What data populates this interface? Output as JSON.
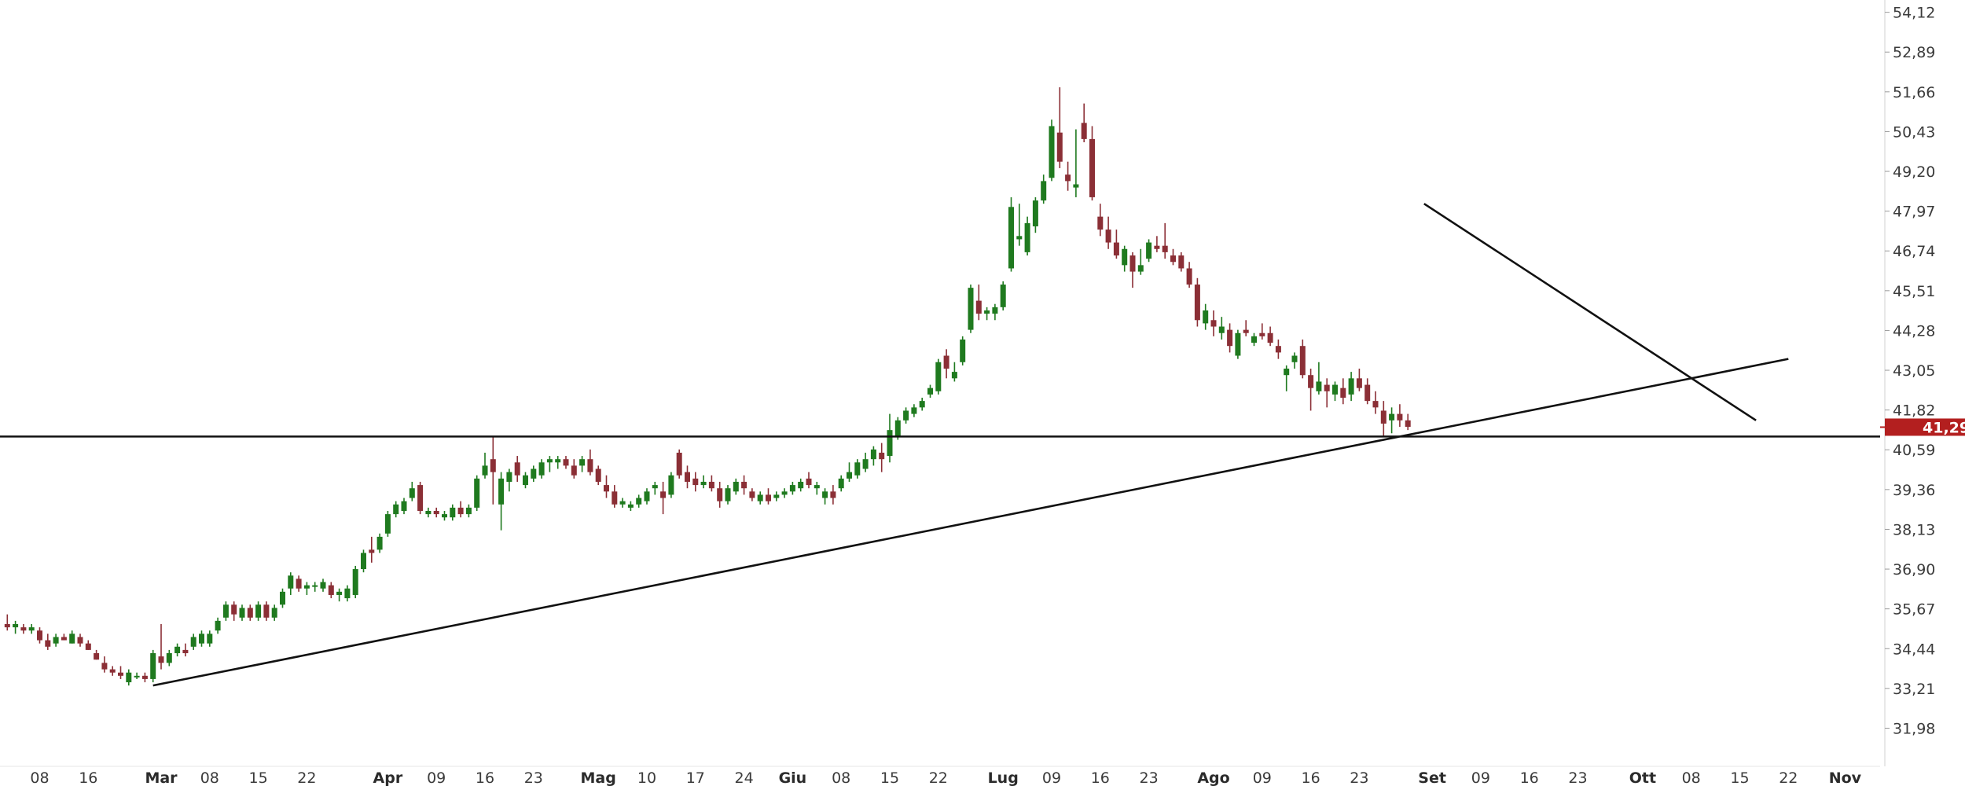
{
  "chart_data": {
    "type": "candlestick",
    "colors": {
      "up": "#1f7a1f",
      "down": "#8b2f36",
      "price_tag": "#b31f1f",
      "lines": "#111111"
    },
    "y_axis": {
      "position": "right",
      "range": [
        30.8,
        54.5
      ],
      "ticks": [
        "54,12",
        "52,89",
        "51,66",
        "50,43",
        "49,20",
        "47,97",
        "46,74",
        "45,51",
        "44,28",
        "43,05",
        "41,82",
        "40,59",
        "39,36",
        "38,13",
        "36,90",
        "35,67",
        "34,44",
        "33,21",
        "31,98"
      ],
      "tick_values": [
        54.12,
        52.89,
        51.66,
        50.43,
        49.2,
        47.97,
        46.74,
        45.51,
        44.28,
        43.05,
        41.82,
        40.59,
        39.36,
        38.13,
        36.9,
        35.67,
        34.44,
        33.21,
        31.98
      ]
    },
    "x_axis": {
      "labels": [
        {
          "text": "08",
          "pos": 5,
          "month": false
        },
        {
          "text": "16",
          "pos": 11,
          "month": false
        },
        {
          "text": "Mar",
          "pos": 20,
          "month": true
        },
        {
          "text": "08",
          "pos": 26,
          "month": false
        },
        {
          "text": "15",
          "pos": 32,
          "month": false
        },
        {
          "text": "22",
          "pos": 38,
          "month": false
        },
        {
          "text": "Apr",
          "pos": 48,
          "month": true
        },
        {
          "text": "09",
          "pos": 54,
          "month": false
        },
        {
          "text": "16",
          "pos": 60,
          "month": false
        },
        {
          "text": "23",
          "pos": 66,
          "month": false
        },
        {
          "text": "Mag",
          "pos": 74,
          "month": true
        },
        {
          "text": "10",
          "pos": 80,
          "month": false
        },
        {
          "text": "17",
          "pos": 86,
          "month": false
        },
        {
          "text": "24",
          "pos": 92,
          "month": false
        },
        {
          "text": "Giu",
          "pos": 98,
          "month": true
        },
        {
          "text": "08",
          "pos": 104,
          "month": false
        },
        {
          "text": "15",
          "pos": 110,
          "month": false
        },
        {
          "text": "22",
          "pos": 116,
          "month": false
        },
        {
          "text": "Lug",
          "pos": 124,
          "month": true
        },
        {
          "text": "09",
          "pos": 130,
          "month": false
        },
        {
          "text": "16",
          "pos": 136,
          "month": false
        },
        {
          "text": "23",
          "pos": 142,
          "month": false
        },
        {
          "text": "Ago",
          "pos": 150,
          "month": true
        },
        {
          "text": "09",
          "pos": 156,
          "month": false
        },
        {
          "text": "16",
          "pos": 162,
          "month": false
        },
        {
          "text": "23",
          "pos": 168,
          "month": false
        },
        {
          "text": "Set",
          "pos": 177,
          "month": true
        },
        {
          "text": "09",
          "pos": 183,
          "month": false
        },
        {
          "text": "16",
          "pos": 189,
          "month": false
        },
        {
          "text": "23",
          "pos": 195,
          "month": false
        },
        {
          "text": "Ott",
          "pos": 203,
          "month": true
        },
        {
          "text": "08",
          "pos": 209,
          "month": false
        },
        {
          "text": "15",
          "pos": 215,
          "month": false
        },
        {
          "text": "22",
          "pos": 221,
          "month": false
        },
        {
          "text": "Nov",
          "pos": 228,
          "month": true
        }
      ]
    },
    "last_price": {
      "label": "41,29",
      "value": 41.29
    },
    "horizontal_line": {
      "value": 41.0
    },
    "trend_lines": [
      {
        "name": "support",
        "from": [
          19,
          33.3
        ],
        "to": [
          221,
          43.4
        ]
      },
      {
        "name": "resistance",
        "from": [
          176,
          48.2
        ],
        "to": [
          217,
          41.5
        ]
      }
    ],
    "candles": [
      [
        1,
        35.2,
        35.5,
        35.0,
        35.1
      ],
      [
        2,
        35.1,
        35.3,
        34.9,
        35.2
      ],
      [
        3,
        35.1,
        35.2,
        34.9,
        35.0
      ],
      [
        4,
        35.0,
        35.2,
        34.9,
        35.1
      ],
      [
        5,
        35.0,
        35.1,
        34.6,
        34.7
      ],
      [
        6,
        34.7,
        34.9,
        34.4,
        34.5
      ],
      [
        7,
        34.6,
        34.9,
        34.5,
        34.8
      ],
      [
        8,
        34.8,
        34.9,
        34.7,
        34.7
      ],
      [
        9,
        34.6,
        35.0,
        34.6,
        34.9
      ],
      [
        10,
        34.8,
        34.9,
        34.5,
        34.6
      ],
      [
        11,
        34.6,
        34.7,
        34.4,
        34.4
      ],
      [
        12,
        34.3,
        34.4,
        34.1,
        34.1
      ],
      [
        13,
        34.0,
        34.2,
        33.7,
        33.8
      ],
      [
        14,
        33.8,
        33.9,
        33.6,
        33.7
      ],
      [
        15,
        33.7,
        33.9,
        33.5,
        33.6
      ],
      [
        16,
        33.4,
        33.8,
        33.3,
        33.7
      ],
      [
        17,
        33.6,
        33.7,
        33.5,
        33.6
      ],
      [
        18,
        33.6,
        33.7,
        33.4,
        33.5
      ],
      [
        19,
        33.5,
        34.4,
        33.4,
        34.3
      ],
      [
        20,
        34.2,
        35.2,
        33.8,
        34.0
      ],
      [
        21,
        34.0,
        34.4,
        33.9,
        34.3
      ],
      [
        22,
        34.3,
        34.6,
        34.2,
        34.5
      ],
      [
        23,
        34.4,
        34.6,
        34.2,
        34.3
      ],
      [
        24,
        34.5,
        34.9,
        34.4,
        34.8
      ],
      [
        25,
        34.6,
        35.0,
        34.5,
        34.9
      ],
      [
        26,
        34.6,
        35.0,
        34.5,
        34.9
      ],
      [
        27,
        35.0,
        35.4,
        34.9,
        35.3
      ],
      [
        28,
        35.4,
        35.9,
        35.3,
        35.8
      ],
      [
        29,
        35.8,
        35.9,
        35.3,
        35.5
      ],
      [
        30,
        35.4,
        35.8,
        35.3,
        35.7
      ],
      [
        31,
        35.7,
        35.8,
        35.3,
        35.4
      ],
      [
        32,
        35.4,
        35.9,
        35.3,
        35.8
      ],
      [
        33,
        35.8,
        35.9,
        35.3,
        35.4
      ],
      [
        34,
        35.4,
        35.8,
        35.3,
        35.7
      ],
      [
        35,
        35.8,
        36.3,
        35.7,
        36.2
      ],
      [
        36,
        36.3,
        36.8,
        36.1,
        36.7
      ],
      [
        37,
        36.6,
        36.7,
        36.2,
        36.3
      ],
      [
        38,
        36.3,
        36.5,
        36.1,
        36.4
      ],
      [
        39,
        36.4,
        36.5,
        36.2,
        36.4
      ],
      [
        40,
        36.3,
        36.6,
        36.2,
        36.5
      ],
      [
        41,
        36.4,
        36.5,
        36.0,
        36.1
      ],
      [
        42,
        36.1,
        36.3,
        35.9,
        36.2
      ],
      [
        43,
        36.0,
        36.4,
        35.9,
        36.3
      ],
      [
        44,
        36.1,
        37.0,
        36.0,
        36.9
      ],
      [
        45,
        36.9,
        37.5,
        36.8,
        37.4
      ],
      [
        46,
        37.5,
        37.9,
        37.1,
        37.4
      ],
      [
        47,
        37.5,
        38.0,
        37.4,
        37.9
      ],
      [
        48,
        38.0,
        38.7,
        37.9,
        38.6
      ],
      [
        49,
        38.6,
        39.0,
        38.5,
        38.9
      ],
      [
        50,
        38.7,
        39.1,
        38.6,
        39.0
      ],
      [
        51,
        39.1,
        39.6,
        39.0,
        39.4
      ],
      [
        52,
        39.5,
        39.6,
        38.6,
        38.7
      ],
      [
        53,
        38.6,
        38.8,
        38.5,
        38.7
      ],
      [
        54,
        38.7,
        38.8,
        38.5,
        38.6
      ],
      [
        55,
        38.5,
        38.7,
        38.4,
        38.6
      ],
      [
        56,
        38.5,
        38.9,
        38.4,
        38.8
      ],
      [
        57,
        38.8,
        39.0,
        38.5,
        38.6
      ],
      [
        58,
        38.6,
        38.9,
        38.5,
        38.8
      ],
      [
        59,
        38.8,
        39.8,
        38.7,
        39.7
      ],
      [
        60,
        39.8,
        40.5,
        39.7,
        40.1
      ],
      [
        61,
        40.3,
        41.0,
        38.9,
        39.9
      ],
      [
        62,
        38.9,
        39.9,
        38.1,
        39.7
      ],
      [
        63,
        39.6,
        40.0,
        39.3,
        39.9
      ],
      [
        64,
        40.2,
        40.4,
        39.6,
        39.8
      ],
      [
        65,
        39.5,
        39.9,
        39.4,
        39.8
      ],
      [
        66,
        39.7,
        40.1,
        39.6,
        40.0
      ],
      [
        67,
        39.8,
        40.3,
        39.7,
        40.2
      ],
      [
        68,
        40.2,
        40.4,
        39.9,
        40.3
      ],
      [
        69,
        40.2,
        40.4,
        40.0,
        40.3
      ],
      [
        70,
        40.3,
        40.4,
        40.0,
        40.1
      ],
      [
        71,
        40.1,
        40.3,
        39.7,
        39.8
      ],
      [
        72,
        40.1,
        40.4,
        39.9,
        40.3
      ],
      [
        73,
        40.3,
        40.6,
        39.8,
        39.9
      ],
      [
        74,
        40.0,
        40.1,
        39.5,
        39.6
      ],
      [
        75,
        39.5,
        39.8,
        39.1,
        39.3
      ],
      [
        76,
        39.3,
        39.5,
        38.8,
        38.9
      ],
      [
        77,
        38.9,
        39.1,
        38.8,
        39.0
      ],
      [
        78,
        38.8,
        39.0,
        38.7,
        38.9
      ],
      [
        79,
        38.9,
        39.2,
        38.8,
        39.1
      ],
      [
        80,
        39.0,
        39.4,
        38.9,
        39.3
      ],
      [
        81,
        39.4,
        39.6,
        39.2,
        39.5
      ],
      [
        82,
        39.3,
        39.6,
        38.6,
        39.1
      ],
      [
        83,
        39.2,
        39.9,
        39.1,
        39.8
      ],
      [
        84,
        40.5,
        40.6,
        39.7,
        39.8
      ],
      [
        85,
        39.9,
        40.1,
        39.4,
        39.6
      ],
      [
        86,
        39.7,
        39.9,
        39.3,
        39.5
      ],
      [
        87,
        39.5,
        39.8,
        39.4,
        39.6
      ],
      [
        88,
        39.6,
        39.8,
        39.3,
        39.4
      ],
      [
        89,
        39.4,
        39.6,
        38.8,
        39.0
      ],
      [
        90,
        39.0,
        39.5,
        38.9,
        39.4
      ],
      [
        91,
        39.3,
        39.7,
        39.2,
        39.6
      ],
      [
        92,
        39.6,
        39.8,
        39.2,
        39.4
      ],
      [
        93,
        39.3,
        39.4,
        39.0,
        39.1
      ],
      [
        94,
        39.0,
        39.3,
        38.9,
        39.2
      ],
      [
        95,
        39.2,
        39.4,
        38.9,
        39.0
      ],
      [
        96,
        39.1,
        39.3,
        39.0,
        39.2
      ],
      [
        97,
        39.2,
        39.4,
        39.1,
        39.3
      ],
      [
        98,
        39.3,
        39.6,
        39.2,
        39.5
      ],
      [
        99,
        39.4,
        39.7,
        39.3,
        39.6
      ],
      [
        100,
        39.7,
        39.9,
        39.4,
        39.5
      ],
      [
        101,
        39.4,
        39.6,
        39.2,
        39.5
      ],
      [
        102,
        39.1,
        39.4,
        38.9,
        39.3
      ],
      [
        103,
        39.3,
        39.5,
        38.9,
        39.1
      ],
      [
        104,
        39.4,
        39.8,
        39.3,
        39.7
      ],
      [
        105,
        39.7,
        40.2,
        39.6,
        39.9
      ],
      [
        106,
        39.8,
        40.3,
        39.7,
        40.2
      ],
      [
        107,
        40.0,
        40.5,
        39.9,
        40.3
      ],
      [
        108,
        40.3,
        40.7,
        40.1,
        40.6
      ],
      [
        109,
        40.5,
        40.8,
        39.9,
        40.3
      ],
      [
        110,
        40.4,
        41.7,
        40.2,
        41.2
      ],
      [
        111,
        41.0,
        41.6,
        40.9,
        41.5
      ],
      [
        112,
        41.5,
        41.9,
        41.4,
        41.8
      ],
      [
        113,
        41.7,
        42.0,
        41.6,
        41.9
      ],
      [
        114,
        41.9,
        42.2,
        41.8,
        42.1
      ],
      [
        115,
        42.3,
        42.6,
        42.2,
        42.5
      ],
      [
        116,
        42.4,
        43.4,
        42.3,
        43.3
      ],
      [
        117,
        43.5,
        43.7,
        42.8,
        43.1
      ],
      [
        118,
        42.8,
        43.3,
        42.7,
        43.0
      ],
      [
        119,
        43.3,
        44.1,
        43.2,
        44.0
      ],
      [
        120,
        44.3,
        45.7,
        44.2,
        45.6
      ],
      [
        121,
        45.2,
        45.7,
        44.6,
        44.8
      ],
      [
        122,
        44.8,
        45.0,
        44.6,
        44.9
      ],
      [
        123,
        44.8,
        45.1,
        44.6,
        45.0
      ],
      [
        124,
        45.0,
        45.8,
        44.9,
        45.7
      ],
      [
        125,
        46.2,
        48.4,
        46.1,
        48.1
      ],
      [
        126,
        47.1,
        48.2,
        46.9,
        47.2
      ],
      [
        127,
        46.7,
        47.8,
        46.6,
        47.6
      ],
      [
        128,
        47.5,
        48.4,
        47.3,
        48.3
      ],
      [
        129,
        48.3,
        49.1,
        48.2,
        48.9
      ],
      [
        130,
        49.0,
        50.8,
        48.9,
        50.6
      ],
      [
        131,
        50.4,
        51.8,
        49.3,
        49.5
      ],
      [
        132,
        49.1,
        49.5,
        48.6,
        48.9
      ],
      [
        133,
        48.7,
        50.5,
        48.4,
        48.8
      ],
      [
        134,
        50.7,
        51.3,
        50.1,
        50.2
      ],
      [
        135,
        50.2,
        50.6,
        48.3,
        48.4
      ],
      [
        136,
        47.8,
        48.2,
        47.2,
        47.4
      ],
      [
        137,
        47.4,
        47.8,
        46.8,
        47.0
      ],
      [
        138,
        47.0,
        47.4,
        46.5,
        46.6
      ],
      [
        139,
        46.3,
        46.9,
        46.1,
        46.8
      ],
      [
        140,
        46.6,
        46.7,
        45.6,
        46.1
      ],
      [
        141,
        46.1,
        46.8,
        46.0,
        46.3
      ],
      [
        142,
        46.5,
        47.1,
        46.4,
        47.0
      ],
      [
        143,
        46.9,
        47.2,
        46.7,
        46.8
      ],
      [
        144,
        46.9,
        47.6,
        46.5,
        46.7
      ],
      [
        145,
        46.6,
        46.8,
        46.3,
        46.4
      ],
      [
        146,
        46.6,
        46.7,
        46.1,
        46.2
      ],
      [
        147,
        46.2,
        46.4,
        45.6,
        45.7
      ],
      [
        148,
        45.7,
        45.9,
        44.4,
        44.6
      ],
      [
        149,
        44.5,
        45.1,
        44.3,
        44.9
      ],
      [
        150,
        44.6,
        44.9,
        44.1,
        44.4
      ],
      [
        151,
        44.2,
        44.7,
        44.0,
        44.4
      ],
      [
        152,
        44.3,
        44.5,
        43.6,
        43.8
      ],
      [
        153,
        43.5,
        44.3,
        43.4,
        44.2
      ],
      [
        154,
        44.3,
        44.6,
        44.1,
        44.2
      ],
      [
        155,
        43.9,
        44.2,
        43.8,
        44.1
      ],
      [
        156,
        44.2,
        44.5,
        44.0,
        44.1
      ],
      [
        157,
        44.2,
        44.4,
        43.8,
        43.9
      ],
      [
        158,
        43.8,
        44.0,
        43.4,
        43.6
      ],
      [
        159,
        42.9,
        43.2,
        42.4,
        43.1
      ],
      [
        160,
        43.3,
        43.6,
        43.1,
        43.5
      ],
      [
        161,
        43.8,
        44.0,
        42.8,
        42.9
      ],
      [
        162,
        42.9,
        43.1,
        41.8,
        42.5
      ],
      [
        163,
        42.4,
        43.3,
        42.3,
        42.7
      ],
      [
        164,
        42.6,
        42.8,
        41.9,
        42.4
      ],
      [
        165,
        42.3,
        42.7,
        42.1,
        42.6
      ],
      [
        166,
        42.5,
        42.8,
        42.0,
        42.2
      ],
      [
        167,
        42.3,
        43.0,
        42.1,
        42.8
      ],
      [
        168,
        42.8,
        43.1,
        42.4,
        42.5
      ],
      [
        169,
        42.6,
        42.8,
        42.0,
        42.1
      ],
      [
        170,
        42.1,
        42.4,
        41.7,
        41.9
      ],
      [
        171,
        41.8,
        42.1,
        41.0,
        41.4
      ],
      [
        172,
        41.5,
        41.9,
        41.1,
        41.7
      ],
      [
        173,
        41.7,
        42.0,
        41.3,
        41.5
      ],
      [
        174,
        41.5,
        41.7,
        41.2,
        41.3
      ]
    ],
    "title": "",
    "xlabel": "",
    "ylabel": "",
    "grid": false,
    "legend": "none"
  }
}
